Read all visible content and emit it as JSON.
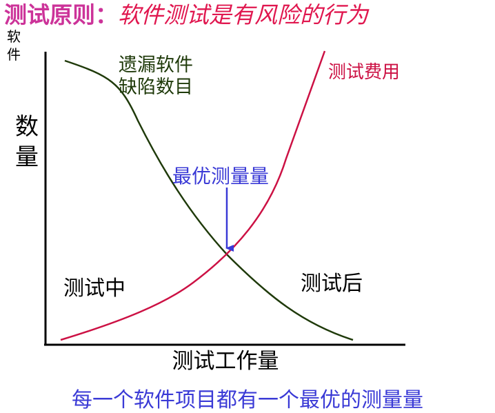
{
  "title": {
    "main": "测试原则：",
    "sub": "软件测试是有风险的行为"
  },
  "y_axis": {
    "label_small": "软件",
    "label_big": "数量"
  },
  "x_axis": {
    "label": "测试工作量"
  },
  "curves": {
    "defects_label_line1": "遗漏软件",
    "defects_label_line2": "缺陷数目",
    "cost_label": "测试费用"
  },
  "annotations": {
    "optimum": "最优测量量",
    "during": "测试中",
    "after": "测试后"
  },
  "footer": "每一个软件项目都有一个最优的测量量",
  "colors": {
    "title_main": "#cc3399",
    "title_sub": "#e0174f",
    "defects_curve": "#1f3a0a",
    "cost_curve": "#cc1144",
    "optimum": "#3a3ad6",
    "footer": "#3a3ad6"
  }
}
